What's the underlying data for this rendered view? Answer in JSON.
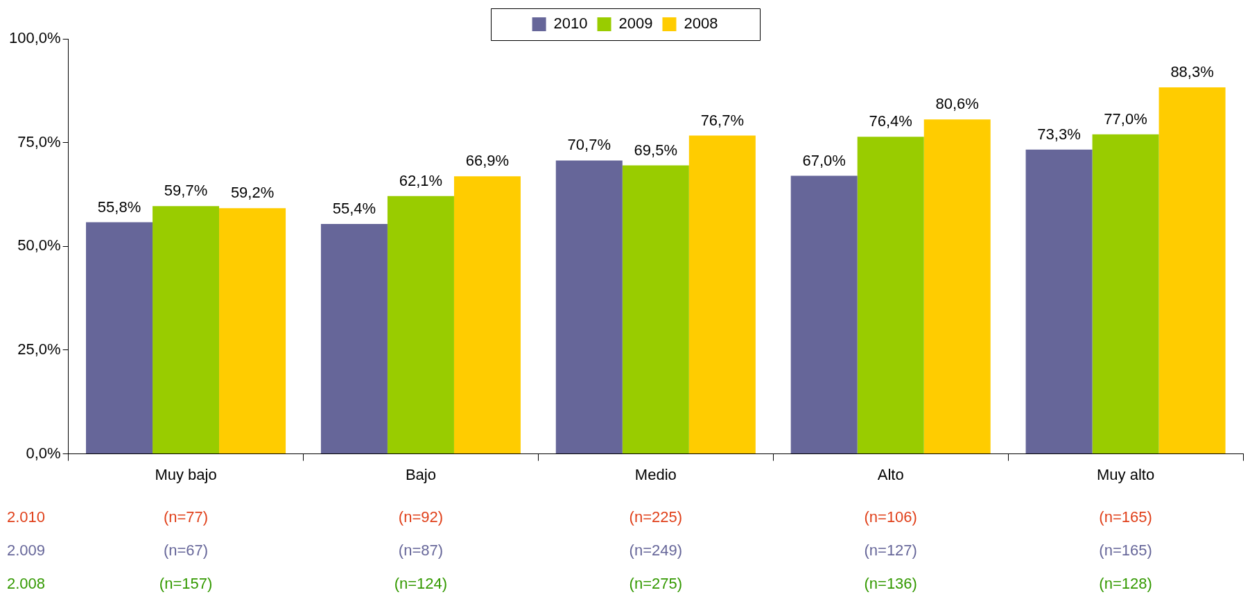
{
  "chart_data": {
    "type": "bar",
    "categories": [
      "Muy bajo",
      "Bajo",
      "Medio",
      "Alto",
      "Muy alto"
    ],
    "series": [
      {
        "name": "2010",
        "color": "#666699",
        "values": [
          55.8,
          55.4,
          70.7,
          67.0,
          73.3
        ],
        "value_labels": [
          "55,8%",
          "55,4%",
          "70,7%",
          "67,0%",
          "73,3%"
        ]
      },
      {
        "name": "2009",
        "color": "#99cc00",
        "values": [
          59.7,
          62.1,
          69.5,
          76.4,
          77.0
        ],
        "value_labels": [
          "59,7%",
          "62,1%",
          "69,5%",
          "76,4%",
          "77,0%"
        ]
      },
      {
        "name": "2008",
        "color": "#ffcc00",
        "values": [
          59.2,
          66.9,
          76.7,
          80.6,
          88.3
        ],
        "value_labels": [
          "59,2%",
          "66,9%",
          "76,7%",
          "80,6%",
          "88,3%"
        ]
      }
    ],
    "ylim": [
      0,
      100
    ],
    "yticks": [
      {
        "value": 0,
        "label": "0,0%"
      },
      {
        "value": 25,
        "label": "25,0%"
      },
      {
        "value": 50,
        "label": "50,0%"
      },
      {
        "value": 75,
        "label": "75,0%"
      },
      {
        "value": 100,
        "label": "100,0%"
      }
    ],
    "grid": false,
    "legend": "top",
    "annotations": [
      "2.010",
      "(n=77)",
      "(n=92)",
      "(n=225)",
      "(n=106)",
      "(n=165)",
      "2.009",
      "(n=67)",
      "(n=87)",
      "(n=249)",
      "(n=127)",
      "(n=165)",
      "2.008",
      "(n=157)",
      "(n=124)",
      "(n=275)",
      "(n=136)",
      "(n=128)"
    ]
  }
}
